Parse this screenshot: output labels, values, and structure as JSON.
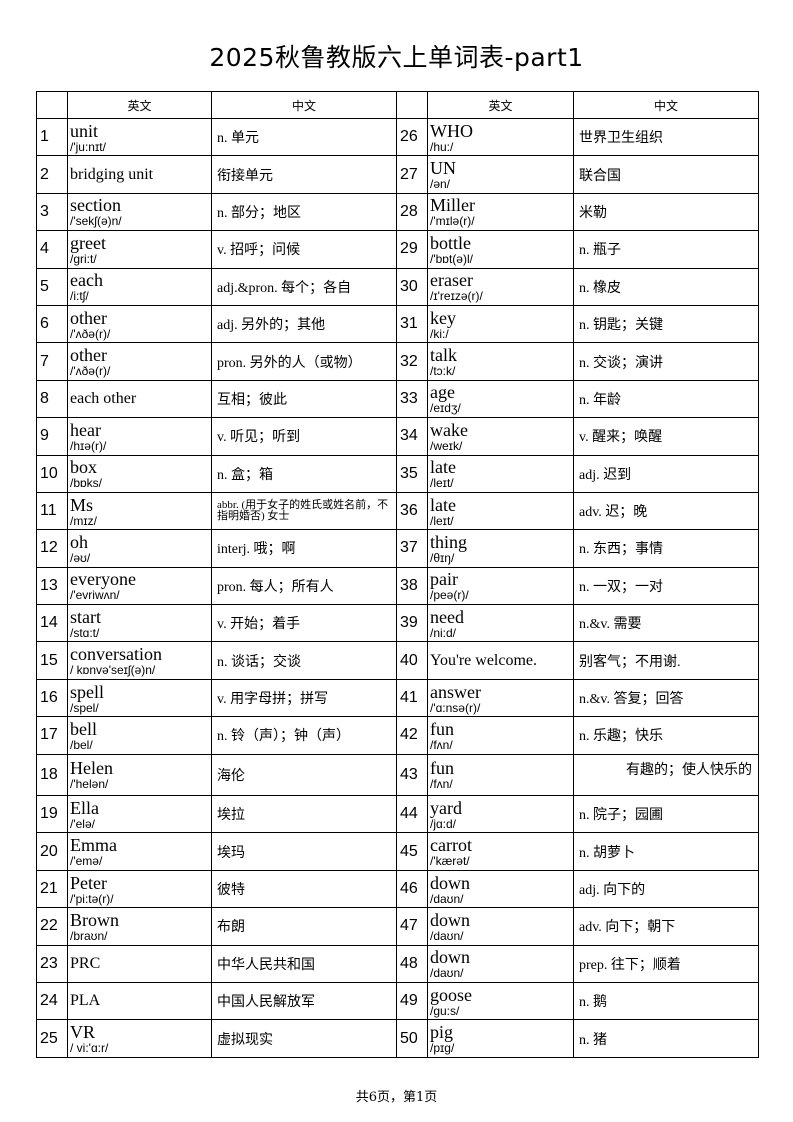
{
  "title": "2025秋鲁教版六上单词表-part1",
  "headers": {
    "en": "英文",
    "cn": "中文"
  },
  "left": [
    {
      "n": "1",
      "word": "unit",
      "ph": "/'ju:nɪt/",
      "cn": "n. 单元"
    },
    {
      "n": "2",
      "word": "bridging unit",
      "ph": "",
      "cn": "衔接单元"
    },
    {
      "n": "3",
      "word": "section",
      "ph": "/'sekʃ(ə)n/",
      "cn": "n. 部分；地区"
    },
    {
      "n": "4",
      "word": "greet",
      "ph": "/gri:t/",
      "cn": "v. 招呼；问候"
    },
    {
      "n": "5",
      "word": "each",
      "ph": "/i:tʃ/",
      "cn": "adj.&pron.  每个；各自"
    },
    {
      "n": "6",
      "word": "other",
      "ph": "/'ʌðə(r)/",
      "cn": "adj.  另外的；其他"
    },
    {
      "n": "7",
      "word": "other",
      "ph": "/'ʌðə(r)/",
      "cn": "pron. 另外的人（或物）"
    },
    {
      "n": "8",
      "word": "each other",
      "ph": "",
      "cn": "互相；彼此"
    },
    {
      "n": "9",
      "word": "hear",
      "ph": "/hɪə(r)/",
      "cn": "v. 听见；听到"
    },
    {
      "n": "10",
      "word": "box",
      "ph": "/bɒks/",
      "cn": "n. 盒；箱"
    },
    {
      "n": "11",
      "word": "Ms",
      "ph": "/mɪz/",
      "cn": "abbr. (用于女子的姓氏或姓名前，不指明婚否) 女士"
    },
    {
      "n": "12",
      "word": "oh",
      "ph": "/əʊ/",
      "cn": "interj.  哦；啊"
    },
    {
      "n": "13",
      "word": "everyone",
      "ph": "/'evriwʌn/",
      "cn": "pron. 每人；所有人"
    },
    {
      "n": "14",
      "word": "start",
      "ph": "/stɑ:t/",
      "cn": "v. 开始；着手"
    },
    {
      "n": "15",
      "word": "conversation",
      "ph": "/ kɒnvə'seɪʃ(ə)n/",
      "cn": "n. 谈话；交谈"
    },
    {
      "n": "16",
      "word": "spell",
      "ph": "/spel/",
      "cn": "v. 用字母拼；拼写"
    },
    {
      "n": "17",
      "word": "bell",
      "ph": "/bel/",
      "cn": "n. 铃（声）；钟（声）"
    },
    {
      "n": "18",
      "word": "Helen",
      "ph": "/'helən/",
      "cn": "海伦"
    },
    {
      "n": "19",
      "word": "Ella",
      "ph": "/'elə/",
      "cn": "埃拉"
    },
    {
      "n": "20",
      "word": "Emma",
      "ph": "/'emə/",
      "cn": "埃玛"
    },
    {
      "n": "21",
      "word": "Peter",
      "ph": "/'pi:tə(r)/",
      "cn": "彼特"
    },
    {
      "n": "22",
      "word": "Brown",
      "ph": "/braʊn/",
      "cn": "布朗"
    },
    {
      "n": "23",
      "word": "PRC",
      "ph": "",
      "cn": "中华人民共和国"
    },
    {
      "n": "24",
      "word": "PLA",
      "ph": "",
      "cn": "中国人民解放军"
    },
    {
      "n": "25",
      "word": "VR",
      "ph": "/ vi:'ɑ:r/",
      "cn": "虚拟现实"
    }
  ],
  "right": [
    {
      "n": "26",
      "word": "WHO",
      "ph": "/hu:/",
      "cn": "世界卫生组织"
    },
    {
      "n": "27",
      "word": "UN",
      "ph": "/ən/",
      "cn": "联合国"
    },
    {
      "n": "28",
      "word": "Miller",
      "ph": "/'mɪlə(r)/",
      "cn": "米勒"
    },
    {
      "n": "29",
      "word": "bottle",
      "ph": "/'bɒt(ə)l/",
      "cn": "n. 瓶子"
    },
    {
      "n": "30",
      "word": "eraser",
      "ph": "/ɪ'reɪzə(r)/",
      "cn": "n. 橡皮"
    },
    {
      "n": "31",
      "word": "key",
      "ph": "/ki:/",
      "cn": "n. 钥匙；关键"
    },
    {
      "n": "32",
      "word": "talk",
      "ph": "/tɔ:k/",
      "cn": "n. 交谈；演讲"
    },
    {
      "n": "33",
      "word": "age",
      "ph": "/eɪdʒ/",
      "cn": "n. 年龄"
    },
    {
      "n": "34",
      "word": "wake",
      "ph": "/weɪk/",
      "cn": "v. 醒来；唤醒"
    },
    {
      "n": "35",
      "word": "late",
      "ph": "/leɪt/",
      "cn": "adj.  迟到"
    },
    {
      "n": "36",
      "word": "late",
      "ph": "/leɪt/",
      "cn": "adv. 迟；晚"
    },
    {
      "n": "37",
      "word": "thing",
      "ph": "/θɪŋ/",
      "cn": "n. 东西；事情"
    },
    {
      "n": "38",
      "word": "pair",
      "ph": "/peə(r)/",
      "cn": "n. 一双；一对"
    },
    {
      "n": "39",
      "word": "need",
      "ph": "/ni:d/",
      "cn": "n.&v.  需要"
    },
    {
      "n": "40",
      "word": "You're welcome.",
      "ph": "",
      "cn": "别客气；不用谢."
    },
    {
      "n": "41",
      "word": "answer",
      "ph": "/'ɑ:nsə(r)/",
      "cn": "n.&v.  答复；回答"
    },
    {
      "n": "42",
      "word": "fun",
      "ph": "/fʌn/",
      "cn": "n. 乐趣；快乐"
    },
    {
      "n": "43",
      "word": "fun",
      "ph": "/fʌn/",
      "cn": "有趣的；使人快乐的"
    },
    {
      "n": "44",
      "word": "yard",
      "ph": "/jɑ:d/",
      "cn": "n. 院子；园圃"
    },
    {
      "n": "45",
      "word": "carrot",
      "ph": "/'kærət/",
      "cn": "n. 胡萝卜"
    },
    {
      "n": "46",
      "word": "down",
      "ph": "/daʊn/",
      "cn": "adj.  向下的"
    },
    {
      "n": "47",
      "word": "down",
      "ph": "/daʊn/",
      "cn": "adv. 向下；朝下"
    },
    {
      "n": "48",
      "word": "down",
      "ph": "/daʊn/",
      "cn": "prep.  往下；顺着"
    },
    {
      "n": "49",
      "word": "goose",
      "ph": "/gu:s/",
      "cn": "n. 鹅"
    },
    {
      "n": "50",
      "word": "pig",
      "ph": "/pɪg/",
      "cn": "n. 猪"
    }
  ],
  "footer": "共6页，第1页"
}
